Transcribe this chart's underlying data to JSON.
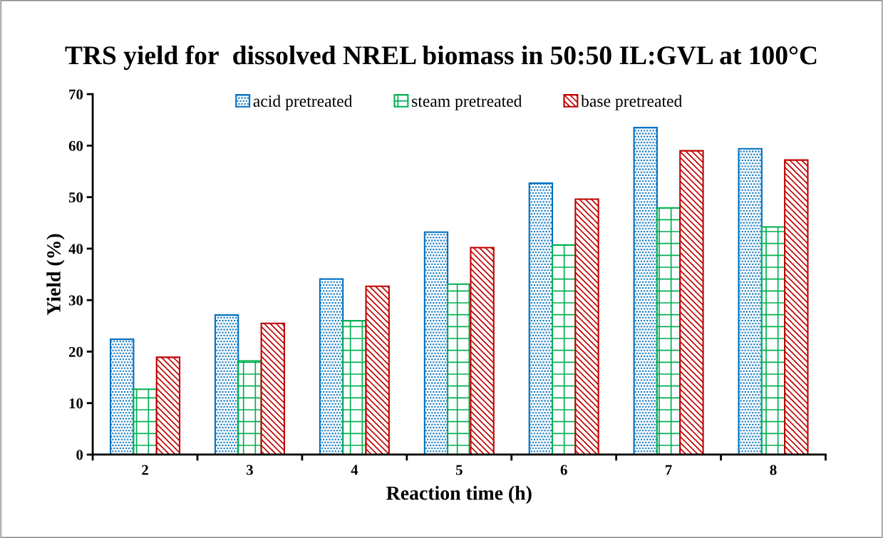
{
  "chart_data": {
    "type": "bar",
    "title": "TRS yield for  dissolved NREL biomass in 50:50 IL:GVL at 100°C",
    "xlabel": "Reaction time (h)",
    "ylabel": "Yield (%)",
    "categories": [
      "2",
      "3",
      "4",
      "5",
      "6",
      "7",
      "8"
    ],
    "series": [
      {
        "name": "acid pretreated",
        "color": "#0070c0",
        "values": [
          22.4,
          27.1,
          34.1,
          43.2,
          52.7,
          63.5,
          59.4
        ]
      },
      {
        "name": "steam pretreated",
        "color": "#00b050",
        "values": [
          12.7,
          18.2,
          26.0,
          33.1,
          40.7,
          47.9,
          44.2
        ]
      },
      {
        "name": "base pretreated",
        "color": "#c00000",
        "values": [
          18.9,
          25.5,
          32.7,
          40.2,
          49.6,
          59.0,
          57.2
        ]
      }
    ],
    "ylim": [
      0,
      70
    ],
    "yticks": [
      0,
      10,
      20,
      30,
      40,
      50,
      60,
      70
    ],
    "grid": false,
    "legend": "top"
  }
}
